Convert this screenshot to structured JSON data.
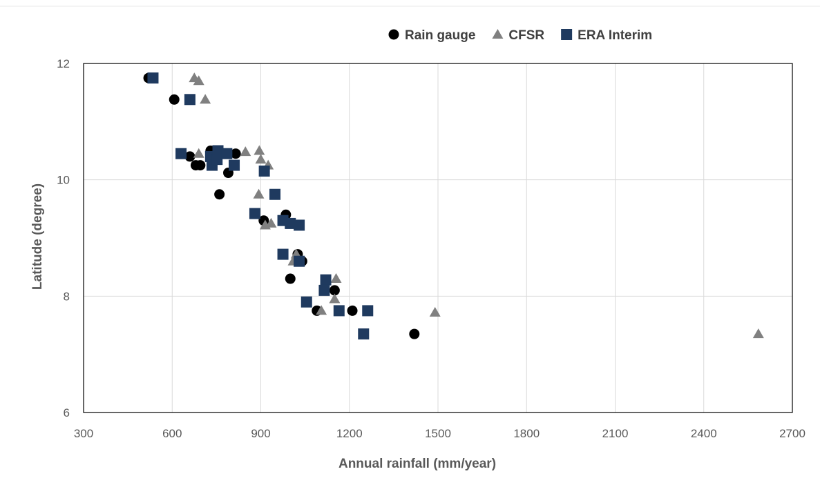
{
  "chart_data": {
    "type": "scatter",
    "title": "",
    "xlabel": "Annual rainfall  (mm/year)",
    "ylabel": "Latitude (degree)",
    "xlim": [
      300,
      2700
    ],
    "ylim": [
      6,
      12
    ],
    "xticks": [
      "300",
      "600",
      "900",
      "1200",
      "1500",
      "1800",
      "2100",
      "2400",
      "2700"
    ],
    "yticks": [
      "6",
      "8",
      "10",
      "12"
    ],
    "grid": true,
    "legend_position": "top",
    "series": [
      {
        "name": "Rain gauge",
        "marker": "circle",
        "color": "#000000",
        "points": [
          [
            520,
            11.75
          ],
          [
            607,
            11.38
          ],
          [
            660,
            10.4
          ],
          [
            680,
            10.25
          ],
          [
            695,
            10.25
          ],
          [
            730,
            10.5
          ],
          [
            760,
            9.75
          ],
          [
            790,
            10.12
          ],
          [
            815,
            10.45
          ],
          [
            910,
            9.3
          ],
          [
            985,
            9.4
          ],
          [
            1000,
            8.3
          ],
          [
            1025,
            8.72
          ],
          [
            1040,
            8.6
          ],
          [
            1090,
            7.75
          ],
          [
            1150,
            8.1
          ],
          [
            1210,
            7.75
          ],
          [
            1420,
            7.35
          ]
        ]
      },
      {
        "name": "CFSR",
        "marker": "triangle",
        "color": "#808080",
        "points": [
          [
            675,
            11.75
          ],
          [
            690,
            11.7
          ],
          [
            712,
            11.38
          ],
          [
            690,
            10.45
          ],
          [
            745,
            10.35
          ],
          [
            760,
            10.48
          ],
          [
            848,
            10.48
          ],
          [
            895,
            10.5
          ],
          [
            900,
            10.35
          ],
          [
            925,
            10.25
          ],
          [
            893,
            9.75
          ],
          [
            915,
            9.22
          ],
          [
            935,
            9.25
          ],
          [
            1020,
            8.72
          ],
          [
            1010,
            8.6
          ],
          [
            1105,
            7.75
          ],
          [
            1150,
            7.95
          ],
          [
            1155,
            8.3
          ],
          [
            1490,
            7.72
          ],
          [
            2585,
            7.35
          ]
        ]
      },
      {
        "name": "ERA Interim",
        "marker": "square",
        "color": "#1F3A5F",
        "points": [
          [
            535,
            11.75
          ],
          [
            660,
            11.38
          ],
          [
            630,
            10.45
          ],
          [
            730,
            10.4
          ],
          [
            735,
            10.25
          ],
          [
            752,
            10.35
          ],
          [
            755,
            10.5
          ],
          [
            785,
            10.45
          ],
          [
            810,
            10.25
          ],
          [
            912,
            10.15
          ],
          [
            948,
            9.75
          ],
          [
            880,
            9.42
          ],
          [
            975,
            9.3
          ],
          [
            1000,
            9.25
          ],
          [
            1030,
            9.22
          ],
          [
            975,
            8.72
          ],
          [
            1030,
            8.6
          ],
          [
            1120,
            8.28
          ],
          [
            1115,
            8.1
          ],
          [
            1055,
            7.9
          ],
          [
            1165,
            7.75
          ],
          [
            1262,
            7.75
          ],
          [
            1248,
            7.35
          ]
        ]
      }
    ]
  }
}
